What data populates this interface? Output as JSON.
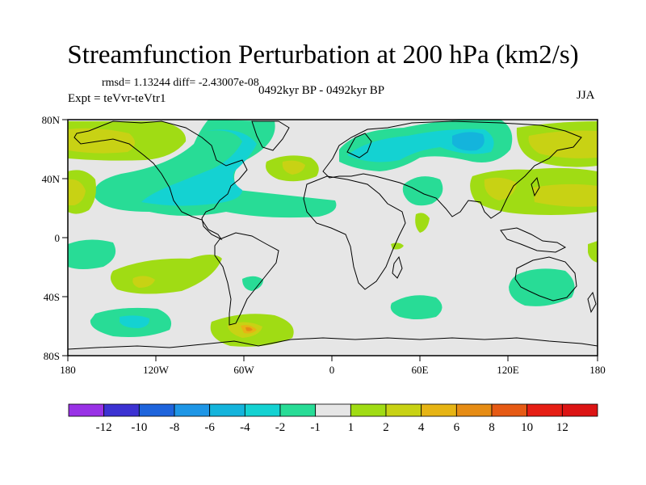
{
  "title": "Streamfunction Perturbation at 200 hPa (km2/s)",
  "stats": "rmsd= 1.13244 diff= -2.43007e-08",
  "experiment": "Expt = teVvr-teVtr1",
  "period": "0492kyr BP - 0492kyr BP",
  "season": "JJA",
  "map": {
    "lon_ticks": [
      "180",
      "120W",
      "60W",
      "0",
      "60E",
      "120E",
      "180"
    ],
    "lat_ticks": [
      "80N",
      "40N",
      "0",
      "40S",
      "80S"
    ]
  },
  "colorbar": {
    "labels": [
      "-12",
      "-10",
      "-8",
      "-6",
      "-4",
      "-2",
      "-1",
      "1",
      "2",
      "4",
      "6",
      "8",
      "10",
      "12"
    ],
    "colors": [
      "#9932e6",
      "#3c32d2",
      "#1e64dc",
      "#1e96e6",
      "#14b4dc",
      "#14d2d2",
      "#28dc96",
      "#e6e6e6",
      "#a0dc14",
      "#c8d214",
      "#e6b414",
      "#e68c14",
      "#e65a14",
      "#e61e14",
      "#dc1414"
    ]
  },
  "contours": {
    "neg1": "#28dc96",
    "neg2": "#14d2d2",
    "neg3": "#14b4dc",
    "pos1": "#a0dc14",
    "pos2": "#c8d214",
    "pos3": "#e6b414",
    "pos4": "#e68c14"
  }
}
